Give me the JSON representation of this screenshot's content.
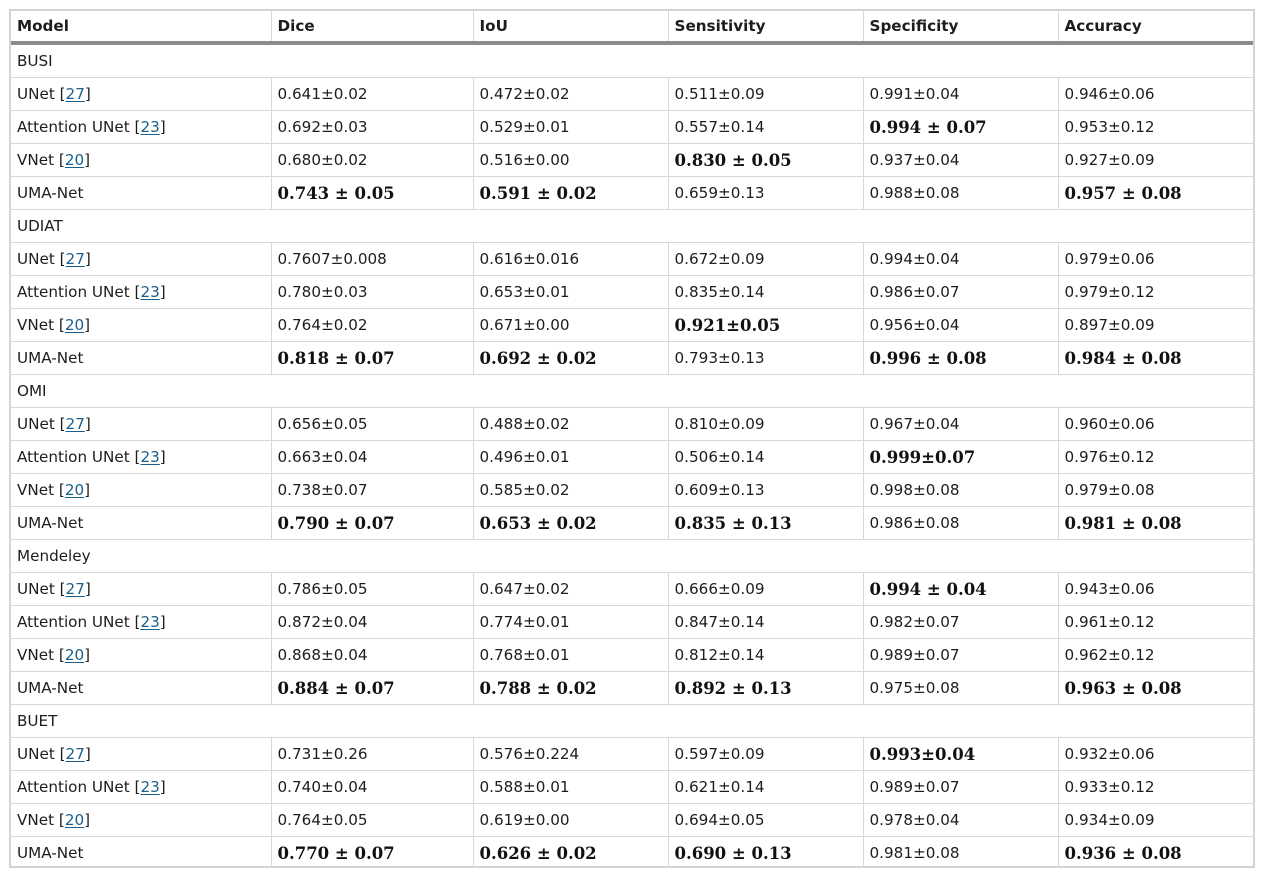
{
  "header": [
    "Model",
    "Dice",
    "IoU",
    "Sensitivity",
    "Specificity",
    "Accuracy"
  ],
  "groups": [
    {
      "name": "BUSI",
      "rows": [
        {
          "model": "UNet",
          "ref": "27",
          "cells": [
            "0.641±0.02",
            "0.472±0.02",
            "0.511±0.09",
            "0.991±0.04",
            "0.946±0.06"
          ],
          "bold": [
            false,
            false,
            false,
            false,
            false
          ]
        },
        {
          "model": "Attention UNet",
          "ref": "23",
          "cells": [
            "0.692±0.03",
            "0.529±0.01",
            "0.557±0.14",
            "0.994 ± 0.07",
            "0.953±0.12"
          ],
          "bold": [
            false,
            false,
            false,
            true,
            false
          ]
        },
        {
          "model": "VNet",
          "ref": "20",
          "cells": [
            "0.680±0.02",
            "0.516±0.00",
            "0.830 ± 0.05",
            "0.937±0.04",
            "0.927±0.09"
          ],
          "bold": [
            false,
            false,
            true,
            false,
            false
          ]
        },
        {
          "model": "UMA-Net",
          "ref": "",
          "cells": [
            "0.743 ± 0.05",
            "0.591 ± 0.02",
            "0.659±0.13",
            "0.988±0.08",
            "0.957 ± 0.08"
          ],
          "bold": [
            true,
            true,
            false,
            false,
            true
          ]
        }
      ]
    },
    {
      "name": "UDIAT",
      "rows": [
        {
          "model": "UNet",
          "ref": "27",
          "cells": [
            "0.7607±0.008",
            "0.616±0.016",
            "0.672±0.09",
            "0.994±0.04",
            "0.979±0.06"
          ],
          "bold": [
            false,
            false,
            false,
            false,
            false
          ]
        },
        {
          "model": "Attention UNet",
          "ref": "23",
          "cells": [
            "0.780±0.03",
            "0.653±0.01",
            "0.835±0.14",
            "0.986±0.07",
            "0.979±0.12"
          ],
          "bold": [
            false,
            false,
            false,
            false,
            false
          ]
        },
        {
          "model": "VNet",
          "ref": "20",
          "cells": [
            "0.764±0.02",
            "0.671±0.00",
            "0.921±0.05",
            "0.956±0.04",
            "0.897±0.09"
          ],
          "bold": [
            false,
            false,
            true,
            false,
            false
          ]
        },
        {
          "model": "UMA-Net",
          "ref": "",
          "cells": [
            "0.818 ± 0.07",
            "0.692 ± 0.02",
            "0.793±0.13",
            "0.996 ± 0.08",
            "0.984 ± 0.08"
          ],
          "bold": [
            true,
            true,
            false,
            true,
            true
          ]
        }
      ]
    },
    {
      "name": "OMI",
      "rows": [
        {
          "model": "UNet",
          "ref": "27",
          "cells": [
            "0.656±0.05",
            "0.488±0.02",
            "0.810±0.09",
            "0.967±0.04",
            "0.960±0.06"
          ],
          "bold": [
            false,
            false,
            false,
            false,
            false
          ]
        },
        {
          "model": "Attention UNet",
          "ref": "23",
          "cells": [
            "0.663±0.04",
            "0.496±0.01",
            "0.506±0.14",
            "0.999±0.07",
            "0.976±0.12"
          ],
          "bold": [
            false,
            false,
            false,
            true,
            false
          ]
        },
        {
          "model": "VNet",
          "ref": "20",
          "cells": [
            "0.738±0.07",
            "0.585±0.02",
            "0.609±0.13",
            "0.998±0.08",
            "0.979±0.08"
          ],
          "bold": [
            false,
            false,
            false,
            false,
            false
          ]
        },
        {
          "model": "UMA-Net",
          "ref": "",
          "cells": [
            "0.790 ± 0.07",
            "0.653 ± 0.02",
            "0.835 ± 0.13",
            "0.986±0.08",
            "0.981 ± 0.08"
          ],
          "bold": [
            true,
            true,
            true,
            false,
            true
          ]
        }
      ]
    },
    {
      "name": "Mendeley",
      "rows": [
        {
          "model": "UNet",
          "ref": "27",
          "cells": [
            "0.786±0.05",
            "0.647±0.02",
            "0.666±0.09",
            "0.994 ± 0.04",
            "0.943±0.06"
          ],
          "bold": [
            false,
            false,
            false,
            true,
            false
          ]
        },
        {
          "model": "Attention UNet",
          "ref": "23",
          "cells": [
            "0.872±0.04",
            "0.774±0.01",
            "0.847±0.14",
            "0.982±0.07",
            "0.961±0.12"
          ],
          "bold": [
            false,
            false,
            false,
            false,
            false
          ]
        },
        {
          "model": "VNet",
          "ref": "20",
          "cells": [
            "0.868±0.04",
            "0.768±0.01",
            "0.812±0.14",
            "0.989±0.07",
            "0.962±0.12"
          ],
          "bold": [
            false,
            false,
            false,
            false,
            false
          ]
        },
        {
          "model": "UMA-Net",
          "ref": "",
          "cells": [
            "0.884 ± 0.07",
            "0.788 ± 0.02",
            "0.892 ± 0.13",
            "0.975±0.08",
            "0.963 ± 0.08"
          ],
          "bold": [
            true,
            true,
            true,
            false,
            true
          ]
        }
      ]
    },
    {
      "name": "BUET",
      "rows": [
        {
          "model": "UNet",
          "ref": "27",
          "cells": [
            "0.731±0.26",
            "0.576±0.224",
            "0.597±0.09",
            "0.993±0.04",
            "0.932±0.06"
          ],
          "bold": [
            false,
            false,
            false,
            true,
            false
          ]
        },
        {
          "model": "Attention UNet",
          "ref": "23",
          "cells": [
            "0.740±0.04",
            "0.588±0.01",
            "0.621±0.14",
            "0.989±0.07",
            "0.933±0.12"
          ],
          "bold": [
            false,
            false,
            false,
            false,
            false
          ]
        },
        {
          "model": "VNet",
          "ref": "20",
          "cells": [
            "0.764±0.05",
            "0.619±0.00",
            "0.694±0.05",
            "0.978±0.04",
            "0.934±0.09"
          ],
          "bold": [
            false,
            false,
            false,
            false,
            false
          ]
        },
        {
          "model": "UMA-Net",
          "ref": "",
          "cells": [
            "0.770 ± 0.07",
            "0.626 ± 0.02",
            "0.690 ± 0.13",
            "0.981±0.08",
            "0.936 ± 0.08"
          ],
          "bold": [
            true,
            true,
            true,
            false,
            true
          ]
        }
      ]
    }
  ]
}
